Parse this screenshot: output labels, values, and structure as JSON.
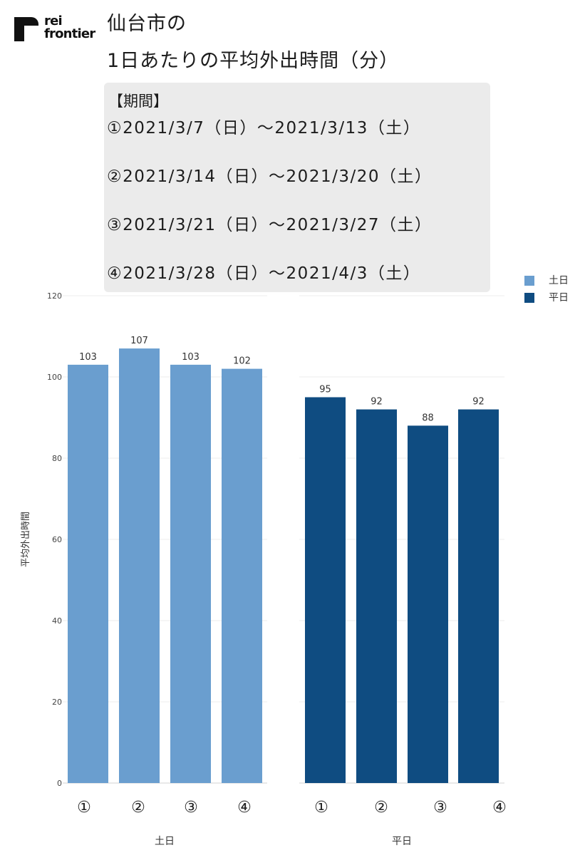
{
  "logo": {
    "line1": "rei",
    "line2": "frontier"
  },
  "title": {
    "line1": "仙台市の",
    "line2": "1日あたりの平均外出時間（分）"
  },
  "period": {
    "heading": "【期間】",
    "lines": [
      "①2021/3/7（日）～2021/3/13（土）",
      "②2021/3/14（日）～2021/3/20（土）",
      "③2021/3/21（日）～2021/3/27（土）",
      "④2021/3/28（日）～2021/4/3（土）"
    ]
  },
  "legend": [
    {
      "label": "土日",
      "color": "#6a9ecf"
    },
    {
      "label": "平日",
      "color": "#0f4c81"
    }
  ],
  "chart_data": {
    "type": "bar",
    "ylabel": "平均外出時間",
    "ylim": [
      0,
      120
    ],
    "yticks": [
      0,
      20,
      40,
      60,
      80,
      100,
      120
    ],
    "grid": true,
    "legend_position": "top-right",
    "categories": [
      "①",
      "②",
      "③",
      "④"
    ],
    "series": [
      {
        "name": "土日",
        "facet_label": "土日",
        "color": "#6a9ecf",
        "values": [
          103,
          107,
          103,
          102
        ]
      },
      {
        "name": "平日",
        "facet_label": "平日",
        "color": "#0f4c81",
        "values": [
          95,
          92,
          88,
          92
        ]
      }
    ]
  }
}
